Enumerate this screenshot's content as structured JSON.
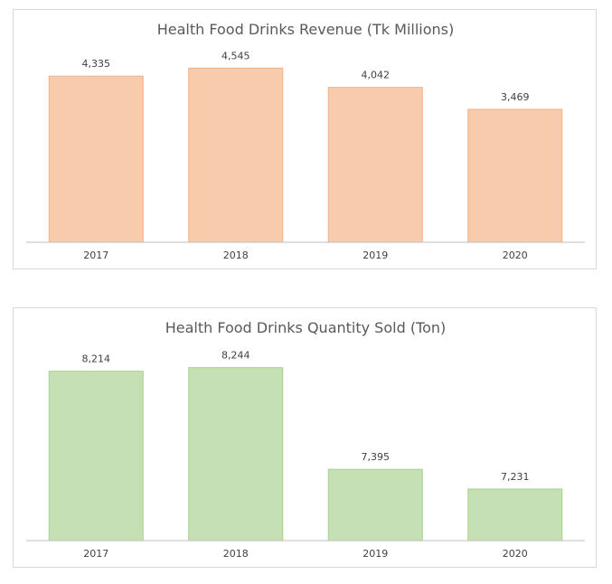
{
  "chart_data": [
    {
      "type": "bar",
      "title": "Health Food Drinks Revenue (Tk Millions)",
      "xlabel": "",
      "ylabel": "",
      "categories": [
        "2017",
        "2018",
        "2019",
        "2020"
      ],
      "values": [
        4335,
        4545,
        4042,
        3469
      ],
      "data_labels": [
        "4,335",
        "4,545",
        "4,042",
        "3,469"
      ],
      "ylim": [
        0,
        5000
      ],
      "grid": false,
      "legend": "none",
      "bar_color": "#f8cbad",
      "bar_edge_color": "#f4b183"
    },
    {
      "type": "bar",
      "title": "Health Food Drinks Quantity Sold (Ton)",
      "xlabel": "",
      "ylabel": "",
      "categories": [
        "2017",
        "2018",
        "2019",
        "2020"
      ],
      "values": [
        8214,
        8244,
        7395,
        7231
      ],
      "data_labels": [
        "8,214",
        "8,244",
        "7,395",
        "7,231"
      ],
      "ylim": [
        6800,
        8400
      ],
      "grid": false,
      "legend": "none",
      "bar_color": "#c5e0b4",
      "bar_edge_color": "#a9d18e"
    }
  ]
}
